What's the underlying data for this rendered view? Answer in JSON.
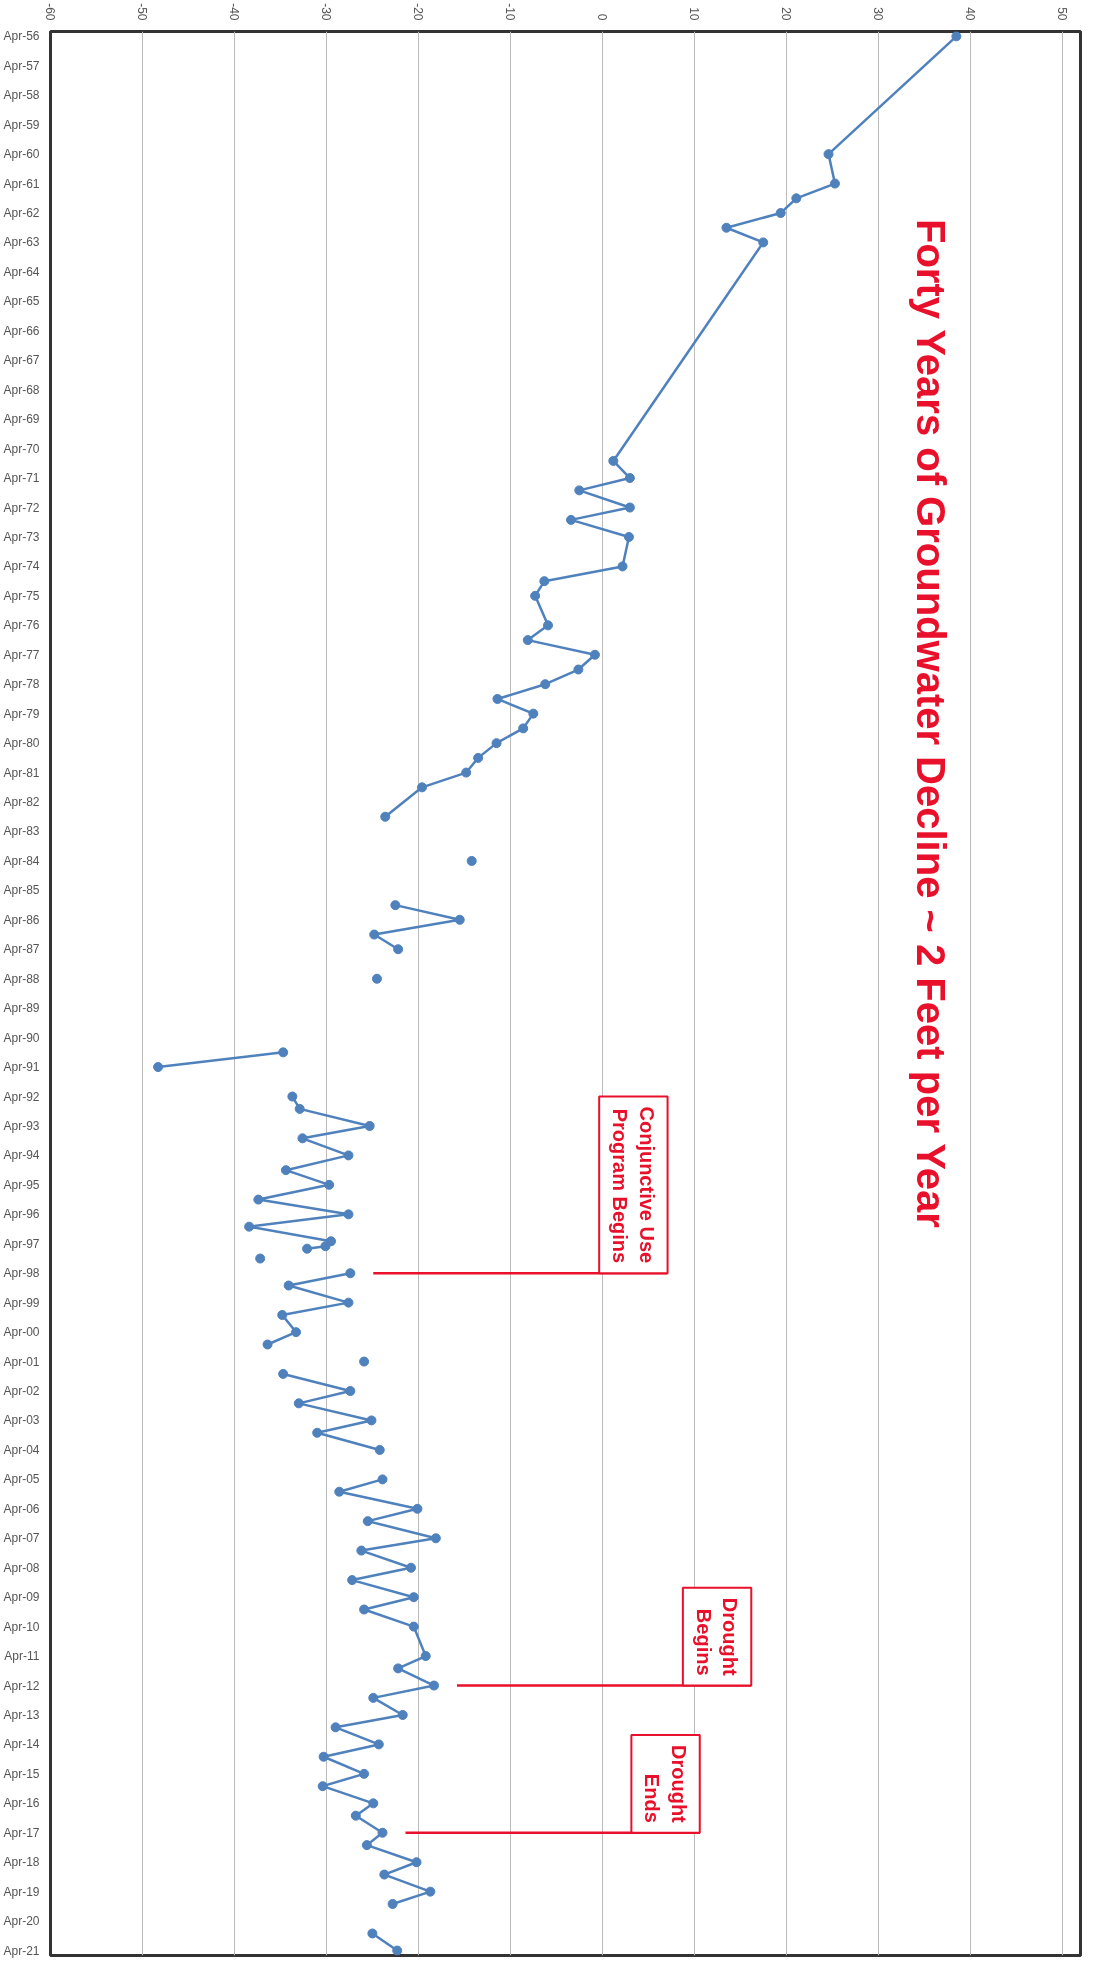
{
  "chart_data": {
    "type": "line",
    "orientation": "horizontal",
    "title": "Forty Years of Groundwater Decline ~ 2 Feet per Year",
    "x": [
      "1956-04",
      "1960-04",
      "1961-04",
      "1961-10",
      "1962-04",
      "1962-10",
      "1963-04",
      "1970-09",
      "1971-04",
      "1971-09",
      "1972-04",
      "1972-09",
      "1973-04",
      "1974-04",
      "1974-10",
      "1975-04",
      "1976-04",
      "1976-10",
      "1977-04",
      "1977-10",
      "1978-04",
      "1978-10",
      "1979-04",
      "1979-10",
      "1980-04",
      "1980-10",
      "1981-04",
      "1981-10",
      "1982-10",
      "1983-06",
      "1984-04",
      "1985-01",
      "1985-10",
      "1986-04",
      "1986-10",
      "1987-04",
      "1987-10",
      "1988-04",
      "1989-06",
      "1990-10",
      "1991-04",
      "1991-10",
      "1992-04",
      "1992-09",
      "1993-04",
      "1993-09",
      "1994-04",
      "1994-10",
      "1995-04",
      "1995-10",
      "1996-04",
      "1996-09",
      "1997-03",
      "1997-05",
      "1997-06",
      "1997-08",
      "1997-10",
      "1998-01",
      "1998-04",
      "1998-09",
      "1999-04",
      "1999-09",
      "2000-04",
      "2000-09",
      "2000-12",
      "2001-04",
      "2001-06",
      "2001-09",
      "2002-04",
      "2002-09",
      "2003-04",
      "2003-09",
      "2004-04",
      "2004-09",
      "2005-04",
      "2005-09",
      "2006-04",
      "2006-09",
      "2007-04",
      "2007-09",
      "2008-04",
      "2008-09",
      "2009-04",
      "2009-09",
      "2010-04",
      "2011-04",
      "2011-09",
      "2012-04",
      "2012-09",
      "2013-04",
      "2013-09",
      "2014-04",
      "2014-09",
      "2015-04",
      "2015-09",
      "2016-04",
      "2016-09",
      "2017-04",
      "2017-09",
      "2018-04",
      "2018-09",
      "2019-04",
      "2019-09",
      "2020-03",
      "2020-09",
      "2021-04"
    ],
    "series": [
      {
        "color": "#4f81bd",
        "values": [
          38.5,
          24.6,
          25.3,
          21.1,
          19.4,
          13.5,
          17.5,
          1.2,
          3.0,
          -2.5,
          3.0,
          -3.4,
          2.9,
          2.2,
          -6.3,
          -7.3,
          -5.9,
          -8.1,
          -0.8,
          -2.6,
          -6.2,
          -11.4,
          -7.5,
          -8.6,
          -11.5,
          -13.5,
          -14.8,
          -19.6,
          -23.6,
          null,
          -14.2,
          null,
          -22.5,
          -15.5,
          -24.8,
          -22.2,
          null,
          -24.5,
          null,
          -34.7,
          -48.3,
          null,
          -33.7,
          -32.9,
          -25.3,
          -32.6,
          -27.6,
          -34.4,
          -29.7,
          -37.4,
          -27.6,
          -38.4,
          -29.5,
          -30.1,
          -32.1,
          null,
          -37.2,
          null,
          -27.4,
          -34.1,
          -27.6,
          -34.8,
          -33.3,
          -36.4,
          null,
          -25.9,
          null,
          -34.7,
          -27.4,
          -33.0,
          -25.1,
          -31.0,
          -24.2,
          null,
          -23.9,
          -28.6,
          -20.1,
          -25.5,
          -18.1,
          -26.2,
          -20.8,
          -27.2,
          -20.5,
          -25.9,
          -20.5,
          -19.2,
          -22.2,
          -18.3,
          -24.9,
          -21.7,
          -29.0,
          -24.3,
          -30.3,
          -25.9,
          -30.4,
          -24.9,
          -26.8,
          -23.9,
          -25.6,
          -20.2,
          -23.7,
          -18.7,
          -22.8,
          null,
          -25.0,
          -22.3
        ]
      }
    ],
    "xlim": [
      -60,
      52
    ],
    "xticks": [
      -60,
      -50,
      -40,
      -30,
      -20,
      -10,
      0,
      10,
      20,
      30,
      40,
      50
    ],
    "ylim": [
      "2021-06",
      "1956-02"
    ],
    "yticks": [
      {
        "value": "1956-04",
        "label": "Apr-56"
      },
      {
        "value": "1957-04",
        "label": "Apr-57"
      },
      {
        "value": "1958-04",
        "label": "Apr-58"
      },
      {
        "value": "1959-04",
        "label": "Apr-59"
      },
      {
        "value": "1960-04",
        "label": "Apr-60"
      },
      {
        "value": "1961-04",
        "label": "Apr-61"
      },
      {
        "value": "1962-04",
        "label": "Apr-62"
      },
      {
        "value": "1963-04",
        "label": "Apr-63"
      },
      {
        "value": "1964-04",
        "label": "Apr-64"
      },
      {
        "value": "1965-04",
        "label": "Apr-65"
      },
      {
        "value": "1966-04",
        "label": "Apr-66"
      },
      {
        "value": "1967-04",
        "label": "Apr-67"
      },
      {
        "value": "1968-04",
        "label": "Apr-68"
      },
      {
        "value": "1969-04",
        "label": "Apr-69"
      },
      {
        "value": "1970-04",
        "label": "Apr-70"
      },
      {
        "value": "1971-04",
        "label": "Apr-71"
      },
      {
        "value": "1972-04",
        "label": "Apr-72"
      },
      {
        "value": "1973-04",
        "label": "Apr-73"
      },
      {
        "value": "1974-04",
        "label": "Apr-74"
      },
      {
        "value": "1975-04",
        "label": "Apr-75"
      },
      {
        "value": "1976-04",
        "label": "Apr-76"
      },
      {
        "value": "1977-04",
        "label": "Apr-77"
      },
      {
        "value": "1978-04",
        "label": "Apr-78"
      },
      {
        "value": "1979-04",
        "label": "Apr-79"
      },
      {
        "value": "1980-04",
        "label": "Apr-80"
      },
      {
        "value": "1981-04",
        "label": "Apr-81"
      },
      {
        "value": "1982-04",
        "label": "Apr-82"
      },
      {
        "value": "1983-04",
        "label": "Apr-83"
      },
      {
        "value": "1984-04",
        "label": "Apr-84"
      },
      {
        "value": "1985-04",
        "label": "Apr-85"
      },
      {
        "value": "1986-04",
        "label": "Apr-86"
      },
      {
        "value": "1987-04",
        "label": "Apr-87"
      },
      {
        "value": "1988-04",
        "label": "Apr-88"
      },
      {
        "value": "1989-04",
        "label": "Apr-89"
      },
      {
        "value": "1990-04",
        "label": "Apr-90"
      },
      {
        "value": "1991-04",
        "label": "Apr-91"
      },
      {
        "value": "1992-04",
        "label": "Apr-92"
      },
      {
        "value": "1993-04",
        "label": "Apr-93"
      },
      {
        "value": "1994-04",
        "label": "Apr-94"
      },
      {
        "value": "1995-04",
        "label": "Apr-95"
      },
      {
        "value": "1996-04",
        "label": "Apr-96"
      },
      {
        "value": "1997-04",
        "label": "Apr-97"
      },
      {
        "value": "1998-04",
        "label": "Apr-98"
      },
      {
        "value": "1999-04",
        "label": "Apr-99"
      },
      {
        "value": "2000-04",
        "label": "Apr-00"
      },
      {
        "value": "2001-04",
        "label": "Apr-01"
      },
      {
        "value": "2002-04",
        "label": "Apr-02"
      },
      {
        "value": "2003-04",
        "label": "Apr-03"
      },
      {
        "value": "2004-04",
        "label": "Apr-04"
      },
      {
        "value": "2005-04",
        "label": "Apr-05"
      },
      {
        "value": "2006-04",
        "label": "Apr-06"
      },
      {
        "value": "2007-04",
        "label": "Apr-07"
      },
      {
        "value": "2008-04",
        "label": "Apr-08"
      },
      {
        "value": "2009-04",
        "label": "Apr-09"
      },
      {
        "value": "2010-04",
        "label": "Apr-10"
      },
      {
        "value": "2011-04",
        "label": "Apr-11"
      },
      {
        "value": "2012-04",
        "label": "Apr-12"
      },
      {
        "value": "2013-04",
        "label": "Apr-13"
      },
      {
        "value": "2014-04",
        "label": "Apr-14"
      },
      {
        "value": "2015-04",
        "label": "Apr-15"
      },
      {
        "value": "2016-04",
        "label": "Apr-16"
      },
      {
        "value": "2017-04",
        "label": "Apr-17"
      },
      {
        "value": "2018-04",
        "label": "Apr-18"
      },
      {
        "value": "2019-04",
        "label": "Apr-19"
      },
      {
        "value": "2020-04",
        "label": "Apr-20"
      },
      {
        "value": "2021-04",
        "label": "Apr-21"
      }
    ],
    "ref_lines": [
      {
        "axis": "y",
        "value": "1998-04",
        "label": "Conjunctive Use\nProgram Begins",
        "color": "#e8102a"
      },
      {
        "axis": "y",
        "value": "2012-04",
        "label": "Drought\nBegins",
        "color": "#e8102a"
      },
      {
        "axis": "y",
        "value": "2017-04",
        "label": "Drought\nEnds",
        "color": "#e8102a"
      }
    ],
    "grid": "x",
    "marker": "circle",
    "line_style": "solid"
  }
}
